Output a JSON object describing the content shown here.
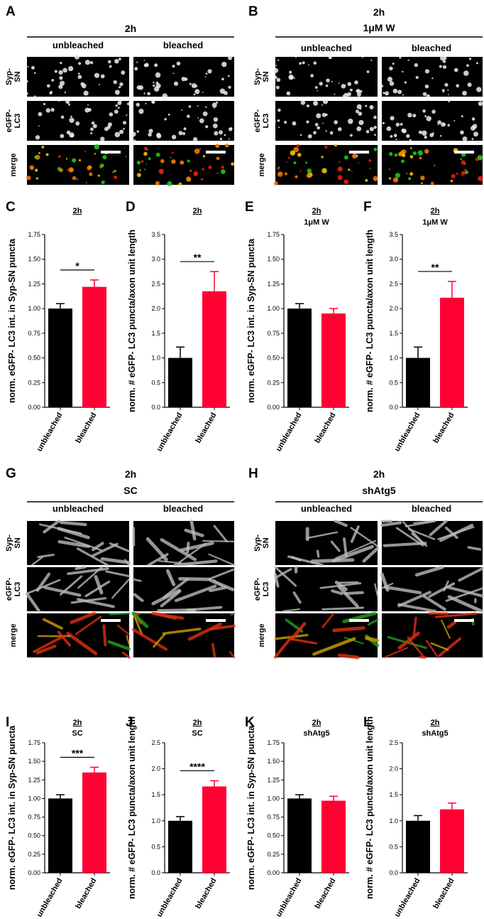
{
  "image_panels": [
    {
      "label": "A",
      "title": [
        "2h"
      ],
      "columns": [
        "unbleached",
        "bleached"
      ],
      "rows": [
        [
          "Syp-",
          "SN"
        ],
        [
          "eGFP-",
          "LC3"
        ],
        [
          "merge"
        ]
      ]
    },
    {
      "label": "B",
      "title": [
        "2h",
        "1μM W"
      ],
      "columns": [
        "unbleached",
        "bleached"
      ],
      "rows": [
        [
          "Syp-",
          "SN"
        ],
        [
          "eGFP-",
          "LC3"
        ],
        [
          "merge"
        ]
      ]
    },
    {
      "label": "G",
      "title": [
        "2h",
        "SC"
      ],
      "columns": [
        "unbleached",
        "bleached"
      ],
      "rows": [
        [
          "Syp-",
          "SN"
        ],
        [
          "eGFP-",
          "LC3"
        ],
        [
          "merge"
        ]
      ]
    },
    {
      "label": "H",
      "title": [
        "2h",
        "shAtg5"
      ],
      "columns": [
        "unbleached",
        "bleached"
      ],
      "rows": [
        [
          "Syp-",
          "SN"
        ],
        [
          "eGFP-",
          "LC3"
        ],
        [
          "merge"
        ]
      ]
    }
  ],
  "chart_data": [
    {
      "type": "bar",
      "label": "C",
      "title": [
        "2h"
      ],
      "ylabel": "norm. eGFP- LC3 int. in Syp-SN puncta",
      "categories": [
        "unbleached",
        "bleached"
      ],
      "values": [
        1.0,
        1.22
      ],
      "errors": [
        0.05,
        0.07
      ],
      "colors": [
        "#000000",
        "#ff0033"
      ],
      "ylim": [
        0,
        1.75
      ],
      "yticks": [
        {
          "value": 0,
          "label": "0.00"
        },
        {
          "value": 0.25,
          "label": "0.25"
        },
        {
          "value": 0.5,
          "label": "0.50"
        },
        {
          "value": 0.75,
          "label": "0.75"
        },
        {
          "value": 1,
          "label": "1.00"
        },
        {
          "value": 1.25,
          "label": "1.25"
        },
        {
          "value": 1.5,
          "label": "1.50"
        },
        {
          "value": 1.75,
          "label": "1.75"
        }
      ],
      "significance": "*"
    },
    {
      "type": "bar",
      "label": "D",
      "title": [
        "2h"
      ],
      "ylabel": "norm. # eGFP- LC3 puncta/axon unit length",
      "categories": [
        "unbleached",
        "bleached"
      ],
      "values": [
        1.0,
        2.35
      ],
      "errors": [
        0.22,
        0.4
      ],
      "colors": [
        "#000000",
        "#ff0033"
      ],
      "ylim": [
        0,
        3.5
      ],
      "yticks": [
        {
          "value": 0,
          "label": "0.0"
        },
        0.5,
        {
          "value": 1,
          "label": "1.0"
        },
        1.5,
        {
          "value": 2,
          "label": "2.0"
        },
        2.5,
        {
          "value": 3,
          "label": "3.0"
        },
        3.5
      ],
      "significance": "**"
    },
    {
      "type": "bar",
      "label": "E",
      "title": [
        "2h",
        "1μM W"
      ],
      "ylabel": "norm. eGFP- LC3 int. in Syp-SN puncta",
      "categories": [
        "unbleached",
        "bleached"
      ],
      "values": [
        1.0,
        0.95
      ],
      "errors": [
        0.05,
        0.05
      ],
      "colors": [
        "#000000",
        "#ff0033"
      ],
      "ylim": [
        0,
        1.75
      ],
      "yticks": [
        {
          "value": 0,
          "label": "0.00"
        },
        {
          "value": 0.25,
          "label": "0.25"
        },
        {
          "value": 0.5,
          "label": "0.50"
        },
        {
          "value": 0.75,
          "label": "0.75"
        },
        {
          "value": 1,
          "label": "1.00"
        },
        {
          "value": 1.25,
          "label": "1.25"
        },
        {
          "value": 1.5,
          "label": "1.50"
        },
        {
          "value": 1.75,
          "label": "1.75"
        }
      ]
    },
    {
      "type": "bar",
      "label": "F",
      "title": [
        "2h",
        "1μM W"
      ],
      "ylabel": "norm. # eGFP- LC3 puncta/axon unit length",
      "categories": [
        "unbleached",
        "bleached"
      ],
      "values": [
        1.0,
        2.22
      ],
      "errors": [
        0.22,
        0.33
      ],
      "colors": [
        "#000000",
        "#ff0033"
      ],
      "ylim": [
        0,
        3.5
      ],
      "yticks": [
        {
          "value": 0,
          "label": "0.0"
        },
        0.5,
        {
          "value": 1,
          "label": "1.0"
        },
        1.5,
        {
          "value": 2,
          "label": "2.0"
        },
        2.5,
        {
          "value": 3,
          "label": "3.0"
        },
        3.5
      ],
      "significance": "**"
    },
    {
      "type": "bar",
      "label": "I",
      "title": [
        "2h",
        "SC"
      ],
      "ylabel": "norm. eGFP- LC3 int. in Syp-SN puncta",
      "categories": [
        "unbleached",
        "bleached"
      ],
      "values": [
        1.0,
        1.35
      ],
      "errors": [
        0.05,
        0.07
      ],
      "colors": [
        "#000000",
        "#ff0033"
      ],
      "ylim": [
        0,
        1.75
      ],
      "yticks": [
        {
          "value": 0,
          "label": "0.00"
        },
        {
          "value": 0.25,
          "label": "0.25"
        },
        {
          "value": 0.5,
          "label": "0.50"
        },
        {
          "value": 0.75,
          "label": "0.75"
        },
        {
          "value": 1,
          "label": "1.00"
        },
        {
          "value": 1.25,
          "label": "1.25"
        },
        {
          "value": 1.5,
          "label": "1.50"
        },
        {
          "value": 1.75,
          "label": "1.75"
        }
      ],
      "significance": "***"
    },
    {
      "type": "bar",
      "label": "J",
      "title": [
        "2h",
        "SC"
      ],
      "ylabel": "norm. # eGFP- LC3 puncta/axon unit length",
      "categories": [
        "unbleached",
        "bleached"
      ],
      "values": [
        1.0,
        1.66
      ],
      "errors": [
        0.08,
        0.11
      ],
      "colors": [
        "#000000",
        "#ff0033"
      ],
      "ylim": [
        0,
        2.5
      ],
      "yticks": [
        {
          "value": 0,
          "label": "0.0"
        },
        0.5,
        {
          "value": 1,
          "label": "1.0"
        },
        1.5,
        {
          "value": 2,
          "label": "2.0"
        },
        2.5
      ],
      "significance": "****"
    },
    {
      "type": "bar",
      "label": "K",
      "title": [
        "2h",
        "shAtg5"
      ],
      "ylabel": "norm. eGFP- LC3 int. in Syp-SN puncta",
      "categories": [
        "unbleached",
        "bleached"
      ],
      "values": [
        1.0,
        0.97
      ],
      "errors": [
        0.05,
        0.06
      ],
      "colors": [
        "#000000",
        "#ff0033"
      ],
      "ylim": [
        0,
        1.75
      ],
      "yticks": [
        {
          "value": 0,
          "label": "0.00"
        },
        {
          "value": 0.25,
          "label": "0.25"
        },
        {
          "value": 0.5,
          "label": "0.50"
        },
        {
          "value": 0.75,
          "label": "0.75"
        },
        {
          "value": 1,
          "label": "1.00"
        },
        {
          "value": 1.25,
          "label": "1.25"
        },
        {
          "value": 1.5,
          "label": "1.50"
        },
        {
          "value": 1.75,
          "label": "1.75"
        }
      ]
    },
    {
      "type": "bar",
      "label": "L",
      "title": [
        "2h",
        "shAtg5"
      ],
      "ylabel": "norm. # eGFP- LC3 puncta/axon unit length",
      "categories": [
        "unbleached",
        "bleached"
      ],
      "values": [
        1.0,
        1.22
      ],
      "errors": [
        0.1,
        0.12
      ],
      "colors": [
        "#000000",
        "#ff0033"
      ],
      "ylim": [
        0,
        2.5
      ],
      "yticks": [
        {
          "value": 0,
          "label": "0.0"
        },
        0.5,
        {
          "value": 1,
          "label": "1.0"
        },
        1.5,
        {
          "value": 2,
          "label": "2.0"
        },
        2.5
      ]
    }
  ]
}
